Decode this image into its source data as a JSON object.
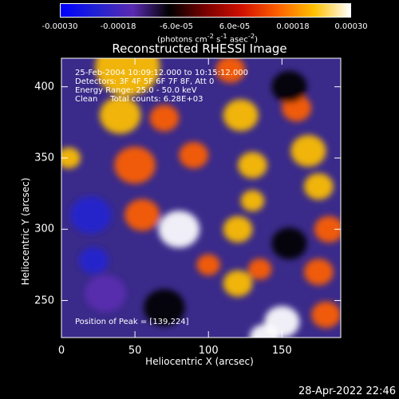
{
  "colorbar": {
    "tick_labels": [
      "-0.00030",
      "-0.00018",
      "-6.0e-05",
      "6.0e-05",
      "0.00018",
      "0.00030"
    ],
    "units_prefix": "(photons cm",
    "units_exp1": "-2",
    "units_mid": " s",
    "units_exp2": "-1",
    "units_mid2": " asec",
    "units_exp3": "-2",
    "units_suffix": ")"
  },
  "info": {
    "time_range": "25-Feb-2004 10:09:12.000 to 10:15:12.000",
    "detectors": "Detectors: 3F 4F 5F 6F 7F 8F, Att 0",
    "energy": "Energy Range: 25.0 - 50.0 keV",
    "clean": "Clean     Total counts: 6.28E+03",
    "peak": "Position of Peak = [139,224]"
  },
  "footer": {
    "date": "28-Apr-2022 22:46"
  },
  "chart_data": {
    "type": "heatmap",
    "title": "Reconstructed RHESSI Image",
    "xlabel": "Heliocentric X (arcsec)",
    "ylabel": "Heliocentric Y (arcsec)",
    "xlim": [
      0,
      190
    ],
    "ylim": [
      224,
      420
    ],
    "x_ticks": [
      0,
      50,
      100,
      150
    ],
    "y_ticks": [
      250,
      300,
      350,
      400
    ],
    "zlim": [
      -0.0003,
      0.0003
    ],
    "colormap": [
      "#0000ff",
      "#2222d0",
      "#5a2ab0",
      "#000000",
      "#7a0000",
      "#d01000",
      "#ff6000",
      "#ffc000",
      "#ffffff"
    ],
    "peak_position": [
      139,
      224
    ],
    "blobs": [
      {
        "x": 45,
        "y": 414,
        "r": 22,
        "v": 0.00026
      },
      {
        "x": 115,
        "y": 412,
        "r": 10,
        "v": 0.00013
      },
      {
        "x": 40,
        "y": 380,
        "r": 14,
        "v": 0.0002
      },
      {
        "x": 70,
        "y": 378,
        "r": 10,
        "v": 0.00018
      },
      {
        "x": 122,
        "y": 380,
        "r": 12,
        "v": 0.0002
      },
      {
        "x": 160,
        "y": 385,
        "r": 10,
        "v": 0.00014
      },
      {
        "x": 5,
        "y": 350,
        "r": 8,
        "v": 0.0002
      },
      {
        "x": 50,
        "y": 345,
        "r": 14,
        "v": 0.00018
      },
      {
        "x": 90,
        "y": 352,
        "r": 10,
        "v": 0.00016
      },
      {
        "x": 130,
        "y": 345,
        "r": 10,
        "v": 0.00022
      },
      {
        "x": 168,
        "y": 355,
        "r": 12,
        "v": 0.00022
      },
      {
        "x": 175,
        "y": 330,
        "r": 10,
        "v": 0.0002
      },
      {
        "x": 182,
        "y": 300,
        "r": 10,
        "v": 0.00018
      },
      {
        "x": 55,
        "y": 310,
        "r": 12,
        "v": 0.00018
      },
      {
        "x": 80,
        "y": 300,
        "r": 14,
        "v": 0.00028
      },
      {
        "x": 120,
        "y": 300,
        "r": 10,
        "v": 0.0002
      },
      {
        "x": 130,
        "y": 320,
        "r": 8,
        "v": 0.0002
      },
      {
        "x": 100,
        "y": 275,
        "r": 8,
        "v": 0.00012
      },
      {
        "x": 120,
        "y": 262,
        "r": 10,
        "v": 0.0002
      },
      {
        "x": 135,
        "y": 272,
        "r": 8,
        "v": 0.00016
      },
      {
        "x": 150,
        "y": 235,
        "r": 12,
        "v": 0.0003
      },
      {
        "x": 138,
        "y": 224,
        "r": 10,
        "v": 0.0003
      },
      {
        "x": 180,
        "y": 240,
        "r": 10,
        "v": 0.00016
      },
      {
        "x": 175,
        "y": 270,
        "r": 10,
        "v": 0.00016
      },
      {
        "x": 20,
        "y": 310,
        "r": 14,
        "v": -0.00026
      },
      {
        "x": 22,
        "y": 278,
        "r": 10,
        "v": -0.00022
      },
      {
        "x": 30,
        "y": 255,
        "r": 14,
        "v": -0.00012
      },
      {
        "x": 70,
        "y": 245,
        "r": 14,
        "v": -0.0001
      },
      {
        "x": 155,
        "y": 290,
        "r": 12,
        "v": -0.0001
      },
      {
        "x": 155,
        "y": 400,
        "r": 12,
        "v": -8e-05
      }
    ]
  }
}
